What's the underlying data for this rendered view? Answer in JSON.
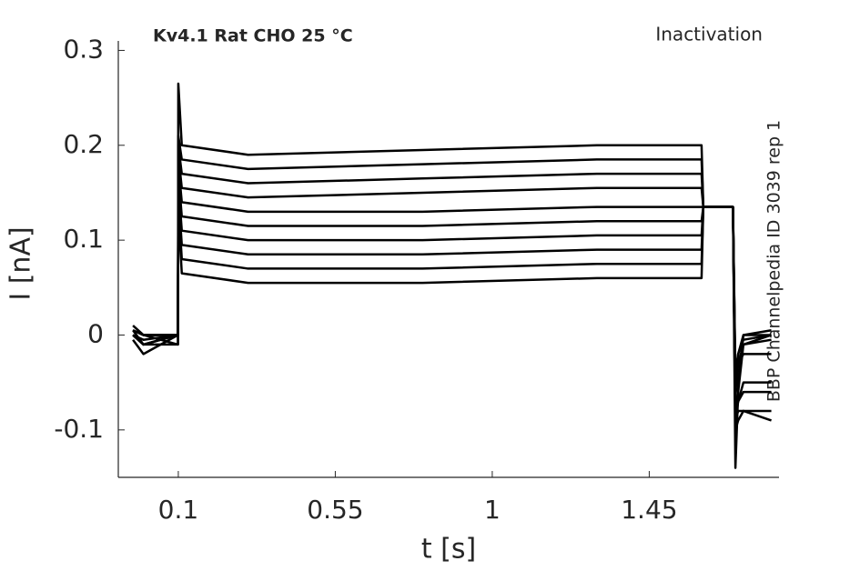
{
  "chart_data": {
    "type": "line",
    "title": "Kv4.1  Rat  CHO  25 °C",
    "annotation": "Inactivation",
    "side_label": "BBP Channelpedia ID 3039 rep 1",
    "xlabel": "t [s]",
    "ylabel": "I [nA]",
    "color": "#000000",
    "x": [
      -0.03,
      0.0,
      0.099,
      0.1,
      0.11,
      0.3,
      0.8,
      1.3,
      1.6,
      1.605,
      1.69,
      1.697,
      1.705,
      1.72,
      1.8
    ],
    "series": [
      {
        "values": [
          0.005,
          -0.01,
          0,
          0.265,
          0.2,
          0.19,
          0.195,
          0.2,
          0.2,
          0.135,
          0.135,
          -0.14,
          -0.06,
          -0.01,
          0
        ]
      },
      {
        "values": [
          0.01,
          0,
          0,
          0.21,
          0.185,
          0.175,
          0.18,
          0.185,
          0.185,
          0.135,
          0.135,
          -0.1,
          -0.05,
          0,
          0.005
        ]
      },
      {
        "values": [
          0,
          -0.005,
          0,
          0.2,
          0.17,
          0.16,
          0.165,
          0.17,
          0.17,
          0.135,
          0.135,
          -0.09,
          -0.07,
          -0.05,
          -0.05
        ]
      },
      {
        "values": [
          0.005,
          0,
          0,
          0.19,
          0.155,
          0.145,
          0.15,
          0.155,
          0.155,
          0.135,
          0.135,
          -0.08,
          -0.07,
          -0.06,
          -0.06
        ]
      },
      {
        "values": [
          -0.005,
          -0.02,
          0,
          0.18,
          0.14,
          0.13,
          0.13,
          0.135,
          0.135,
          0.135,
          0.135,
          -0.1,
          -0.09,
          -0.08,
          -0.09
        ]
      },
      {
        "values": [
          0,
          -0.01,
          -0.01,
          0.17,
          0.125,
          0.115,
          0.115,
          0.12,
          0.12,
          0.135,
          0.135,
          -0.09,
          -0.08,
          -0.08,
          -0.08
        ]
      },
      {
        "values": [
          0.005,
          0,
          0,
          0.16,
          0.11,
          0.1,
          0.1,
          0.105,
          0.105,
          0.135,
          0.135,
          -0.06,
          -0.03,
          -0.01,
          -0.005
        ]
      },
      {
        "values": [
          0,
          -0.01,
          0,
          0.15,
          0.095,
          0.085,
          0.085,
          0.09,
          0.09,
          0.135,
          0.135,
          -0.05,
          -0.02,
          0,
          0
        ]
      },
      {
        "values": [
          0.005,
          0,
          -0.01,
          0.14,
          0.08,
          0.07,
          0.07,
          0.075,
          0.075,
          0.135,
          0.135,
          -0.05,
          -0.03,
          -0.02,
          -0.02
        ]
      },
      {
        "values": [
          0,
          -0.01,
          0,
          0.13,
          0.065,
          0.055,
          0.055,
          0.06,
          0.06,
          0.135,
          0.135,
          -0.04,
          -0.02,
          -0.005,
          0
        ]
      }
    ],
    "xlim": [
      -0.072,
      1.822
    ],
    "ylim": [
      -0.15,
      0.31
    ],
    "xticks": [
      0.1,
      0.55,
      1,
      1.45
    ],
    "yticks": [
      -0.1,
      0,
      0.1,
      0.2,
      0.3
    ]
  }
}
